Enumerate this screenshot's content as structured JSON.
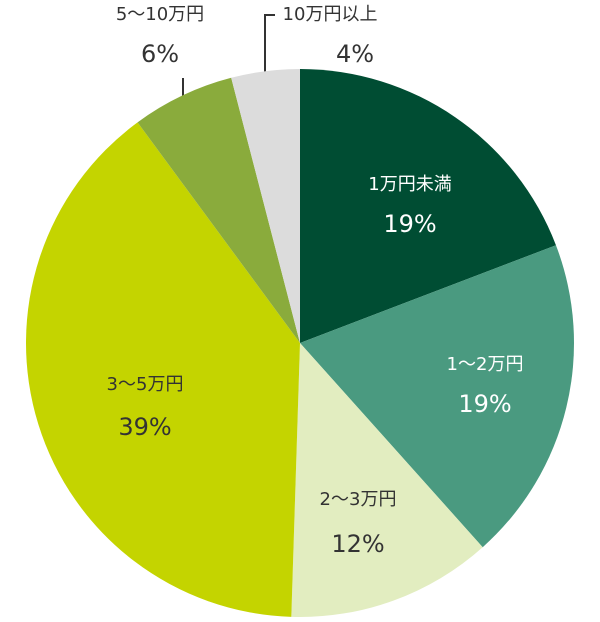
{
  "chart_data": {
    "type": "pie",
    "categories": [
      "1万円未満",
      "1〜2万円",
      "2〜3万円",
      "3〜5万円",
      "5〜10万円",
      "10万円以上"
    ],
    "values": [
      19,
      19,
      12,
      39,
      6,
      4
    ],
    "value_labels": [
      "19%",
      "19%",
      "12%",
      "39%",
      "6%",
      "4%"
    ],
    "colors": [
      "#004d33",
      "#4a9a80",
      "#e2edc0",
      "#c4d400",
      "#8aab3c",
      "#dcdcdc"
    ]
  }
}
